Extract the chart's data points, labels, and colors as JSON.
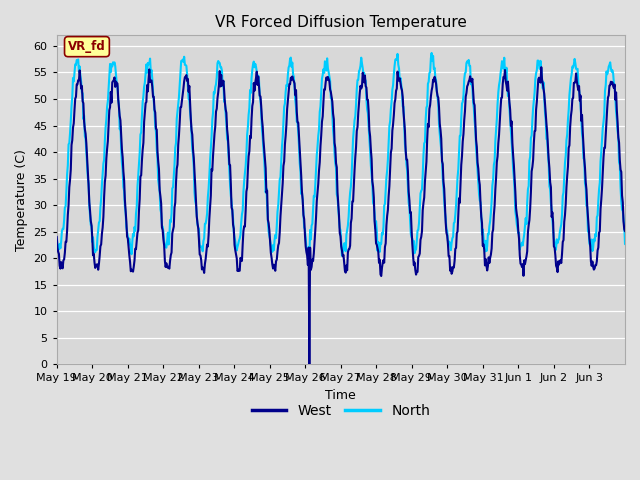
{
  "title": "VR Forced Diffusion Temperature",
  "xlabel": "Time",
  "ylabel": "Temperature (C)",
  "ylim": [
    0,
    62
  ],
  "yticks": [
    0,
    5,
    10,
    15,
    20,
    25,
    30,
    35,
    40,
    45,
    50,
    55,
    60
  ],
  "west_color": "#00008B",
  "north_color": "#00CCFF",
  "fig_bg_color": "#E0E0E0",
  "plot_bg_color": "#D8D8D8",
  "annotation_box_facecolor": "#FFFF99",
  "annotation_text_color": "#8B0000",
  "annotation_border_color": "#8B0000",
  "annotation_text": "VR_fd",
  "x_labels": [
    "May 19",
    "May 20",
    "May 21",
    "May 22",
    "May 23",
    "May 24",
    "May 25",
    "May 26",
    "May 27",
    "May 28",
    "May 29",
    "May 30",
    "May 31",
    "Jun 1",
    "Jun 2",
    "Jun 3"
  ],
  "west_linewidth": 1.5,
  "north_linewidth": 1.5,
  "n_days": 16,
  "points_per_day": 48
}
